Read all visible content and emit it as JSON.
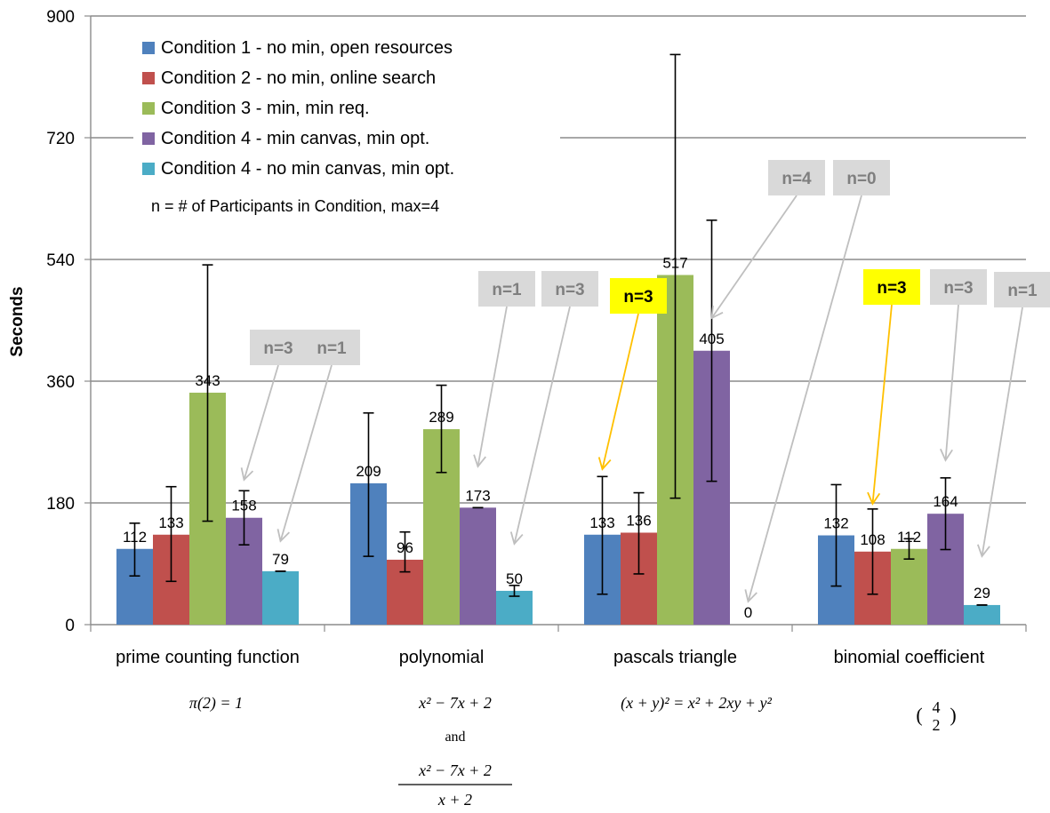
{
  "chart_data": {
    "type": "bar",
    "title": "",
    "xlabel": "",
    "ylabel": "Seconds",
    "ylim": [
      0,
      900
    ],
    "yticks": [
      "0",
      "180",
      "360",
      "540",
      "720",
      "900"
    ],
    "grid": true,
    "legend_position": "top-left (inside plot)",
    "categories": [
      "prime counting function",
      "polynomial",
      "pascals triangle",
      "binomial coefficient"
    ],
    "series": [
      {
        "name": "Condition 1 - no min, open resources",
        "color": "#4f81bd",
        "values": [
          112,
          209,
          133,
          132
        ],
        "labels": [
          "112",
          "209",
          "133",
          "132"
        ],
        "err_low": [
          72,
          101,
          45,
          57
        ],
        "err_high": [
          150,
          313,
          219,
          207
        ]
      },
      {
        "name": "Condition 2 - no min, online search",
        "color": "#c0504d",
        "values": [
          133,
          96,
          136,
          108
        ],
        "labels": [
          "133",
          "96",
          "136",
          "108"
        ],
        "err_low": [
          64,
          78,
          75,
          45
        ],
        "err_high": [
          204,
          137,
          195,
          171
        ]
      },
      {
        "name": "Condition 3 - min, min req.",
        "color": "#9bbb59",
        "values": [
          343,
          289,
          517,
          112
        ],
        "labels": [
          "343",
          "289",
          "517",
          "112"
        ],
        "err_low": [
          153,
          225,
          187,
          97
        ],
        "err_high": [
          532,
          354,
          843,
          127
        ]
      },
      {
        "name": "Condition 4 - min canvas, min opt.",
        "color": "#8064a2",
        "values": [
          158,
          173,
          405,
          164
        ],
        "labels": [
          "158",
          "173",
          "405",
          "164"
        ],
        "err_low": [
          118,
          173,
          212,
          111
        ],
        "err_high": [
          198,
          173,
          598,
          217
        ]
      },
      {
        "name": "Condition 4 - no min canvas, min opt.",
        "color": "#4bacc6",
        "values": [
          79,
          50,
          0,
          29
        ],
        "labels": [
          "79",
          "50",
          "0",
          "29"
        ],
        "err_low": [
          79,
          42,
          0,
          29
        ],
        "err_high": [
          79,
          58,
          0,
          29
        ]
      }
    ],
    "legend_note": "n = # of Participants in Condition, max=4",
    "formulas": {
      "prime": "π(2) = 1",
      "poly_line1": "x² − 7x + 2",
      "poly_and": "and",
      "poly_num": "x² − 7x + 2",
      "poly_den": "x + 2",
      "pascal": "(x + y)² = x² + 2xy +  y²",
      "binom_top": "4",
      "binom_bottom": "2",
      "binom_open": "(",
      "binom_close": ")"
    },
    "annotations": [
      {
        "text": "n=3",
        "style": "gray",
        "group": 0,
        "series": 3
      },
      {
        "text": "n=1",
        "style": "gray",
        "group": 0,
        "series": 4
      },
      {
        "text": "n=1",
        "style": "gray",
        "group": 1,
        "series": 3
      },
      {
        "text": "n=3",
        "style": "gray",
        "group": 1,
        "series": 4
      },
      {
        "text": "n=3",
        "style": "yellow",
        "group": 2,
        "series": 0
      },
      {
        "text": "n=4",
        "style": "gray",
        "group": 2,
        "series": 3
      },
      {
        "text": "n=0",
        "style": "gray",
        "group": 2,
        "series": 4
      },
      {
        "text": "n=3",
        "style": "yellow",
        "group": 3,
        "series": 1
      },
      {
        "text": "n=3",
        "style": "gray",
        "group": 3,
        "series": 3
      },
      {
        "text": "n=1",
        "style": "gray",
        "group": 3,
        "series": 4
      }
    ],
    "annotation_colors": {
      "gray_fill": "#d9d9d9",
      "gray_text": "#7f7f7f",
      "yellow_fill": "#ffff00",
      "yellow_text": "#000000",
      "gray_arrow": "#bfbfbf",
      "yellow_arrow": "#ffc000"
    }
  }
}
